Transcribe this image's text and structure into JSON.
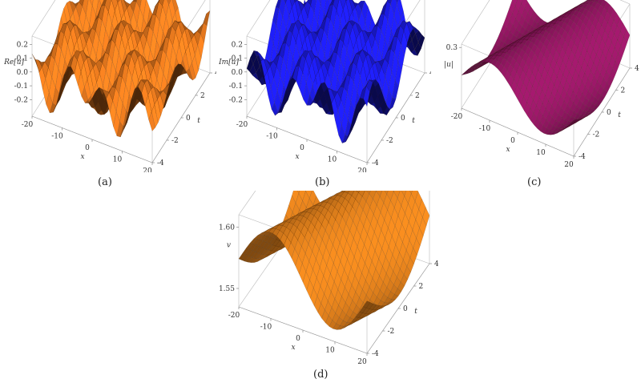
{
  "chart_data": [
    {
      "type": "surface",
      "panel": "(a)",
      "zlabel": "Re[u]",
      "xlabel": "x",
      "ylabel": "t",
      "xlim": [
        -20,
        20
      ],
      "ylim": [
        -4,
        4
      ],
      "zlim": [
        -0.3,
        0.25
      ],
      "xticks": [
        "-20",
        "-10",
        "0",
        "10",
        "20"
      ],
      "yticks": [
        "-4",
        "-2",
        "0",
        "2",
        "4"
      ],
      "zticks": [
        "-0.2",
        "-0.1",
        "0.0",
        "0.1",
        "0.2"
      ],
      "color": "#d6701c"
    },
    {
      "type": "surface",
      "panel": "(b)",
      "zlabel": "Im[u]",
      "xlabel": "x",
      "ylabel": "t",
      "xlim": [
        -20,
        20
      ],
      "ylim": [
        -4,
        4
      ],
      "zlim": [
        -0.3,
        0.25
      ],
      "xticks": [
        "-20",
        "-10",
        "0",
        "10",
        "20"
      ],
      "yticks": [
        "-4",
        "-2",
        "0",
        "2",
        "4"
      ],
      "zticks": [
        "-0.2",
        "-0.1",
        "0.0",
        "0.1",
        "0.2"
      ],
      "color": "#1a1ad6"
    },
    {
      "type": "surface",
      "panel": "(c)",
      "zlabel": "|u|",
      "xlabel": "x",
      "ylabel": "t",
      "xlim": [
        -20,
        20
      ],
      "ylim": [
        -4,
        4
      ],
      "zticks": [
        "0.3"
      ],
      "xticks": [
        "-20",
        "-10",
        "0",
        "10",
        "20"
      ],
      "yticks": [
        "-4",
        "-2",
        "0",
        "2",
        "4"
      ],
      "color": "#a4196e"
    },
    {
      "type": "surface",
      "panel": "(d)",
      "zlabel": "v",
      "xlabel": "x",
      "ylabel": "t",
      "xlim": [
        -20,
        20
      ],
      "ylim": [
        -4,
        4
      ],
      "zlim": [
        1.54,
        1.61
      ],
      "xticks": [
        "-20",
        "-10",
        "0",
        "10",
        "20"
      ],
      "yticks": [
        "-4",
        "-2",
        "0",
        "2",
        "4"
      ],
      "zticks": [
        "1.55",
        "1.60"
      ],
      "color": "#f28a1e"
    }
  ],
  "captions": {
    "a": "(a)",
    "b": "(b)",
    "c": "(c)",
    "d": "(d)"
  }
}
